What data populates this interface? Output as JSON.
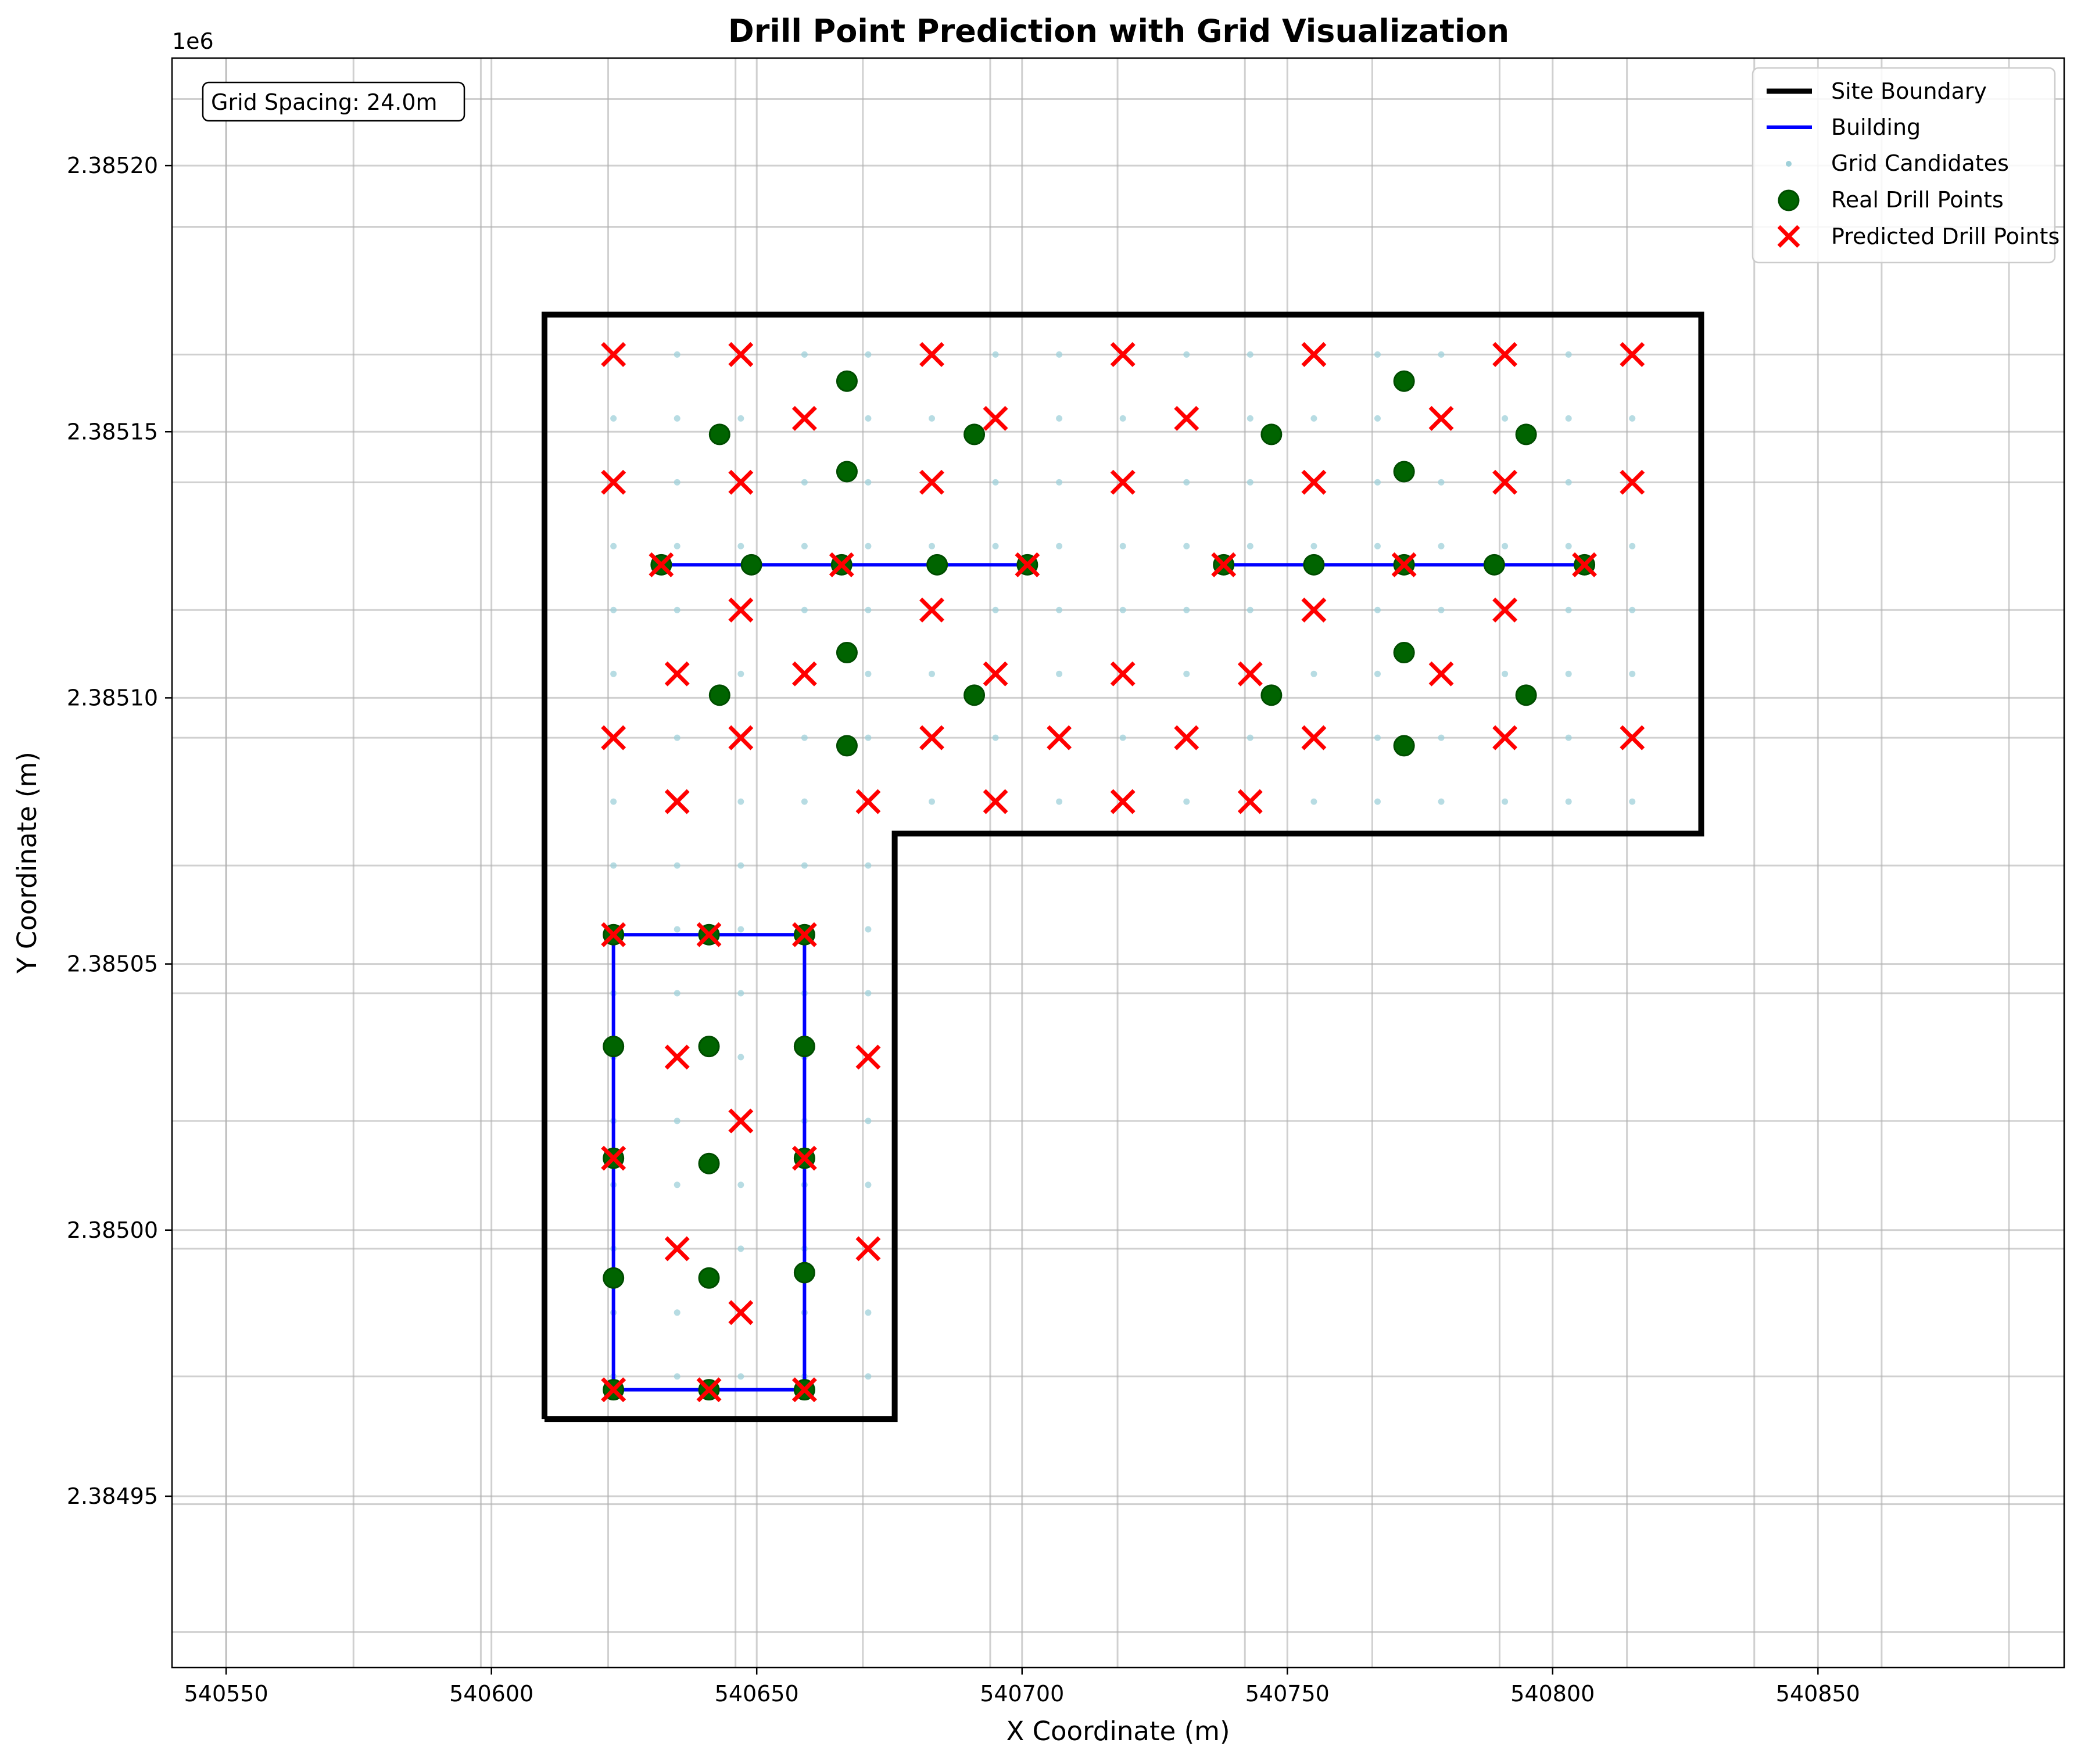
{
  "chart_data": {
    "type": "scatter",
    "title": "Drill Point Prediction with Grid Visualization",
    "xlabel": "X Coordinate (m)",
    "ylabel": "Y Coordinate (m)",
    "y_offset_label": "1e6",
    "annotation": "Grid Spacing: 24.0m",
    "xlim": [
      540539.8,
      540896.4
    ],
    "ylim": [
      2384917.8,
      2385220.2
    ],
    "xticks": [
      540550,
      540600,
      540650,
      540700,
      540750,
      540800,
      540850
    ],
    "xtick_labels": [
      "540550",
      "540600",
      "540650",
      "540700",
      "540750",
      "540800",
      "540850"
    ],
    "yticks": [
      2384950,
      2385000,
      2385050,
      2385100,
      2385150,
      2385200
    ],
    "ytick_labels": [
      "2.38495",
      "2.38500",
      "2.38505",
      "2.38510",
      "2.38515",
      "2.38520"
    ],
    "grid": true,
    "legend_position": "top-right",
    "legend": [
      "Site Boundary",
      "Building",
      "Grid Candidates",
      "Real Drill Points",
      "Predicted Drill Points"
    ],
    "colors": {
      "site_boundary": "#000000",
      "building": "#0000ff",
      "grid_candidates": "#9fd0d9",
      "real": "#006400",
      "predicted": "#ff0000"
    },
    "site_boundary": [
      [
        540610,
        2384964.5
      ],
      [
        540610,
        2385172
      ],
      [
        540828,
        2385172
      ],
      [
        540828,
        2385074.5
      ],
      [
        540676,
        2385074.5
      ],
      [
        540676,
        2384964.5
      ],
      [
        540610,
        2384964.5
      ]
    ],
    "buildings": [
      [
        [
          540632,
          2385125
        ],
        [
          540701,
          2385125
        ]
      ],
      [
        [
          540738,
          2385125
        ],
        [
          540806,
          2385125
        ]
      ],
      [
        [
          540623,
          2384970
        ],
        [
          540623,
          2385055.5
        ],
        [
          540659,
          2385055.5
        ],
        [
          540659,
          2384970
        ],
        [
          540623,
          2384970
        ]
      ]
    ],
    "real_drill_points": [
      [
        540632,
        2385125
      ],
      [
        540649,
        2385125
      ],
      [
        540666,
        2385125
      ],
      [
        540684,
        2385125
      ],
      [
        540701,
        2385125
      ],
      [
        540738,
        2385125
      ],
      [
        540755,
        2385125
      ],
      [
        540772,
        2385125
      ],
      [
        540789,
        2385125
      ],
      [
        540806,
        2385125
      ],
      [
        540643,
        2385149.5
      ],
      [
        540691,
        2385149.5
      ],
      [
        540747,
        2385149.5
      ],
      [
        540795,
        2385149.5
      ],
      [
        540667,
        2385159.5
      ],
      [
        540772,
        2385159.5
      ],
      [
        540667,
        2385142.5
      ],
      [
        540772,
        2385142.5
      ],
      [
        540643,
        2385100.5
      ],
      [
        540691,
        2385100.5
      ],
      [
        540747,
        2385100.5
      ],
      [
        540795,
        2385100.5
      ],
      [
        540667,
        2385108.5
      ],
      [
        540772,
        2385108.5
      ],
      [
        540667,
        2385091
      ],
      [
        540772,
        2385091
      ],
      [
        540623,
        2385055.5
      ],
      [
        540641,
        2385055.5
      ],
      [
        540659,
        2385055.5
      ],
      [
        540623,
        2385034.5
      ],
      [
        540641,
        2385034.5
      ],
      [
        540659,
        2385034.5
      ],
      [
        540623,
        2385013.5
      ],
      [
        540641,
        2385012.5
      ],
      [
        540659,
        2385013.5
      ],
      [
        540623,
        2384991
      ],
      [
        540641,
        2384991
      ],
      [
        540659,
        2384992
      ],
      [
        540623,
        2384970
      ],
      [
        540641,
        2384970
      ],
      [
        540659,
        2384970
      ]
    ],
    "predicted_drill_points": [
      [
        540623,
        2385164.5
      ],
      [
        540647,
        2385164.5
      ],
      [
        540683,
        2385164.5
      ],
      [
        540719,
        2385164.5
      ],
      [
        540755,
        2385164.5
      ],
      [
        540791,
        2385164.5
      ],
      [
        540815,
        2385164.5
      ],
      [
        540659,
        2385152.5
      ],
      [
        540695,
        2385152.5
      ],
      [
        540731,
        2385152.5
      ],
      [
        540779,
        2385152.5
      ],
      [
        540623,
        2385140.5
      ],
      [
        540647,
        2385140.5
      ],
      [
        540683,
        2385140.5
      ],
      [
        540719,
        2385140.5
      ],
      [
        540755,
        2385140.5
      ],
      [
        540791,
        2385140.5
      ],
      [
        540815,
        2385140.5
      ],
      [
        540632,
        2385125
      ],
      [
        540666,
        2385125
      ],
      [
        540701,
        2385125
      ],
      [
        540738,
        2385125
      ],
      [
        540772,
        2385125
      ],
      [
        540806,
        2385125
      ],
      [
        540647,
        2385116.5
      ],
      [
        540683,
        2385116.5
      ],
      [
        540755,
        2385116.5
      ],
      [
        540791,
        2385116.5
      ],
      [
        540635,
        2385104.5
      ],
      [
        540659,
        2385104.5
      ],
      [
        540695,
        2385104.5
      ],
      [
        540719,
        2385104.5
      ],
      [
        540743,
        2385104.5
      ],
      [
        540779,
        2385104.5
      ],
      [
        540623,
        2385092.5
      ],
      [
        540647,
        2385092.5
      ],
      [
        540683,
        2385092.5
      ],
      [
        540707,
        2385092.5
      ],
      [
        540731,
        2385092.5
      ],
      [
        540755,
        2385092.5
      ],
      [
        540791,
        2385092.5
      ],
      [
        540815,
        2385092.5
      ],
      [
        540635,
        2385080.5
      ],
      [
        540671,
        2385080.5
      ],
      [
        540695,
        2385080.5
      ],
      [
        540719,
        2385080.5
      ],
      [
        540743,
        2385080.5
      ],
      [
        540623,
        2385055.5
      ],
      [
        540641,
        2385055.5
      ],
      [
        540659,
        2385055.5
      ],
      [
        540635,
        2385032.5
      ],
      [
        540671,
        2385032.5
      ],
      [
        540647,
        2385020.5
      ],
      [
        540623,
        2385013.5
      ],
      [
        540659,
        2385013.5
      ],
      [
        540635,
        2384996.5
      ],
      [
        540671,
        2384996.5
      ],
      [
        540647,
        2384984.5
      ],
      [
        540623,
        2384970
      ],
      [
        540641,
        2384970
      ],
      [
        540659,
        2384970
      ]
    ],
    "grid_candidates": {
      "spacing": 12,
      "x_start": 540623,
      "x_end": 540815,
      "y_start": 2384972.5,
      "y_end": 2385164.5,
      "rect_L_x": [
        540623,
        540671
      ],
      "rect_L_y": [
        2384972.5,
        2385080.5
      ],
      "rect_top_x": [
        540623,
        540815
      ],
      "rect_top_y": [
        2385080.5,
        2385164.5
      ]
    }
  }
}
